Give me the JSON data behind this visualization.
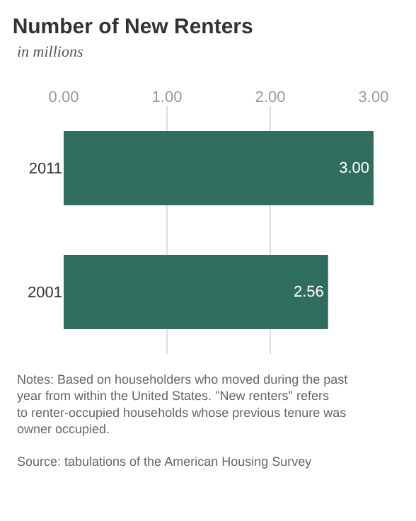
{
  "chart_data": {
    "type": "bar",
    "orientation": "horizontal",
    "title": "Number of New Renters",
    "subtitle": "in millions",
    "categories": [
      "2011",
      "2001"
    ],
    "values": [
      3.0,
      2.56
    ],
    "value_labels": [
      "3.00",
      "2.56"
    ],
    "color": "#2f6e5e",
    "xlim": [
      0,
      3
    ],
    "xticks": [
      {
        "value": 0,
        "label": "0.00"
      },
      {
        "value": 1,
        "label": "1.00"
      },
      {
        "value": 2,
        "label": "2.00"
      },
      {
        "value": 3,
        "label": "3.00"
      }
    ],
    "grid": "x",
    "annotations": [
      "Notes: Based on householders who moved during the past year from within the United States. \"New renters\" refers to renter-occupied households whose previous tenure was owner occupied.",
      "Source: tabulations of the American Housing Survey"
    ]
  }
}
